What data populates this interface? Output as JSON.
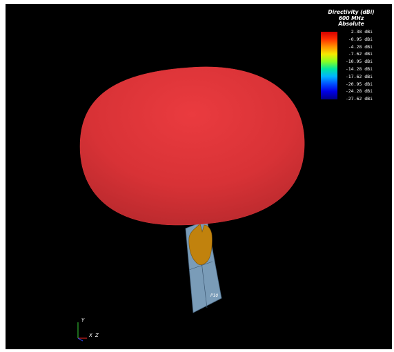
{
  "legend": {
    "title_line1": "Directivity (dBi)",
    "title_line2": "600 MHz",
    "title_line3": "Absolute",
    "ticks": [
      "2.38 dBi",
      "-0.95 dBi",
      "-4.28 dBi",
      "-7.62 dBi",
      "-10.95 dBi",
      "-14.28 dBi",
      "-17.62 dBi",
      "-20.95 dBi",
      "-24.28 dBi",
      "-27.62 dBi"
    ],
    "colors": [
      "#d40000",
      "#ff3000",
      "#ff9000",
      "#f5e800",
      "#88ff22",
      "#00e6a0",
      "#00b4ff",
      "#0050ff",
      "#0000e6",
      "#000088"
    ]
  },
  "scene": {
    "pattern_color": "#e1353a",
    "port_label": "P10",
    "axes": {
      "y": "Y",
      "x": "X",
      "z": "Z"
    }
  }
}
